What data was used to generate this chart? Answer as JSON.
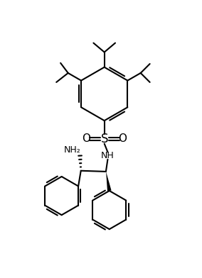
{
  "bg_color": "#ffffff",
  "line_color": "#000000",
  "lw": 1.5,
  "fs": 9,
  "figsize": [
    2.84,
    3.92
  ],
  "dpi": 100,
  "xlim": [
    -1,
    11
  ],
  "ylim": [
    0,
    15
  ]
}
